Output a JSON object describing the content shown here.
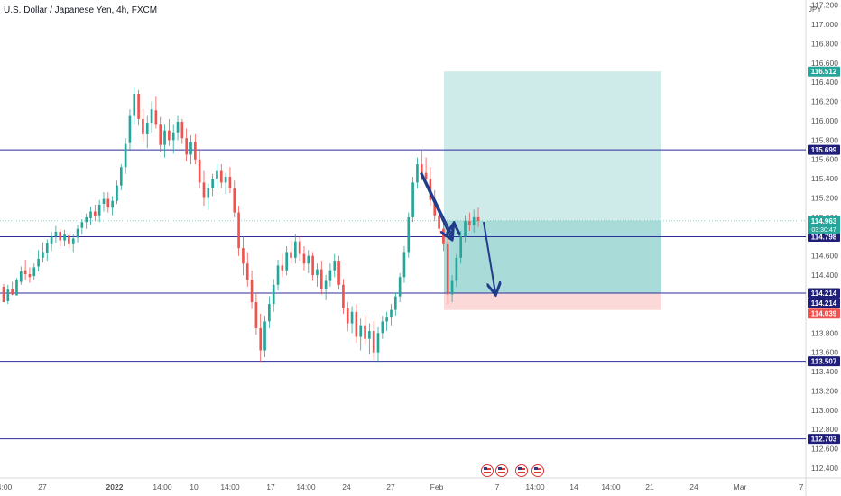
{
  "header": {
    "title": "U.S. Dollar / Japanese Yen, 4h, FXCM",
    "currency_badge": "JPY"
  },
  "colors": {
    "up_candle": "#26a69a",
    "down_candle": "#ef5350",
    "level_line": "#2c2c9a",
    "profit_zone": "rgba(38,166,154,0.22)",
    "loss_zone": "rgba(239,83,80,0.22)",
    "arrow": "#1f3b8a"
  },
  "chart_data": {
    "type": "candlestick",
    "symbol": "U.S. Dollar / Japanese Yen",
    "interval": "4h",
    "source": "FXCM",
    "y_range": [
      112.3,
      117.25
    ],
    "y_ticks": [
      "117.200",
      "117.000",
      "116.800",
      "116.600",
      "116.400",
      "116.200",
      "116.000",
      "115.800",
      "115.600",
      "115.400",
      "115.200",
      "115.000",
      "114.800",
      "114.600",
      "114.400",
      "114.200",
      "114.000",
      "113.800",
      "113.600",
      "113.400",
      "113.200",
      "113.000",
      "112.800",
      "112.600",
      "112.400"
    ],
    "x_ticks": [
      "4:00",
      "27",
      "2022",
      "14:00",
      "10",
      "14:00",
      "17",
      "14:00",
      "24",
      "27",
      "Feb",
      "7",
      "14:00",
      "14",
      "14:00",
      "21",
      "24",
      "Mar",
      "7"
    ],
    "horizontal_levels": [
      {
        "label": "115.699",
        "value": 115.699
      },
      {
        "label": "114.798",
        "value": 114.798
      },
      {
        "label": "114.214",
        "value": 114.214
      },
      {
        "label": "113.507",
        "value": 113.507
      },
      {
        "label": "112.703",
        "value": 112.703
      }
    ],
    "price_badges": [
      {
        "label": "116.512",
        "value": 116.512,
        "kind": "target"
      },
      {
        "label": "114.963",
        "sublabel": "03:30:47",
        "value": 114.963,
        "kind": "current"
      },
      {
        "label": "114.214",
        "value": 114.214,
        "kind": "entry"
      },
      {
        "label": "114.039",
        "value": 114.039,
        "kind": "stop"
      }
    ],
    "position_tool": {
      "entry": 114.214,
      "target": 116.512,
      "stop": 114.039,
      "current": 114.963
    },
    "candles": [
      [
        114.28,
        114.31,
        114.12,
        114.12
      ],
      [
        114.13,
        114.3,
        114.1,
        114.25
      ],
      [
        114.26,
        114.33,
        114.19,
        114.2
      ],
      [
        114.19,
        114.37,
        114.19,
        114.35
      ],
      [
        114.33,
        114.49,
        114.3,
        114.44
      ],
      [
        114.45,
        114.56,
        114.35,
        114.41
      ],
      [
        114.41,
        114.48,
        114.32,
        114.38
      ],
      [
        114.39,
        114.52,
        114.35,
        114.48
      ],
      [
        114.49,
        114.66,
        114.44,
        114.57
      ],
      [
        114.58,
        114.74,
        114.53,
        114.64
      ],
      [
        114.63,
        114.77,
        114.55,
        114.73
      ],
      [
        114.72,
        114.85,
        114.65,
        114.8
      ],
      [
        114.8,
        114.91,
        114.73,
        114.85
      ],
      [
        114.85,
        114.88,
        114.7,
        114.76
      ],
      [
        114.76,
        114.87,
        114.7,
        114.82
      ],
      [
        114.81,
        114.84,
        114.68,
        114.72
      ],
      [
        114.72,
        114.83,
        114.64,
        114.78
      ],
      [
        114.79,
        114.92,
        114.74,
        114.88
      ],
      [
        114.89,
        114.98,
        114.82,
        114.95
      ],
      [
        114.95,
        115.04,
        114.88,
        115.0
      ],
      [
        114.99,
        115.11,
        114.92,
        115.06
      ],
      [
        115.06,
        115.13,
        114.96,
        115.01
      ],
      [
        115.02,
        115.18,
        114.95,
        115.13
      ],
      [
        115.14,
        115.26,
        115.06,
        115.19
      ],
      [
        115.19,
        115.26,
        115.05,
        115.1
      ],
      [
        115.1,
        115.22,
        115.02,
        115.17
      ],
      [
        115.17,
        115.38,
        115.14,
        115.33
      ],
      [
        115.33,
        115.55,
        115.28,
        115.52
      ],
      [
        115.52,
        115.82,
        115.45,
        115.76
      ],
      [
        115.77,
        116.12,
        115.7,
        116.05
      ],
      [
        116.05,
        116.35,
        115.96,
        116.28
      ],
      [
        116.28,
        116.32,
        115.95,
        116.02
      ],
      [
        116.02,
        116.12,
        115.78,
        115.86
      ],
      [
        115.86,
        116.05,
        115.72,
        115.98
      ],
      [
        115.98,
        116.2,
        115.88,
        116.12
      ],
      [
        116.11,
        116.25,
        115.92,
        115.96
      ],
      [
        115.96,
        116.04,
        115.68,
        115.75
      ],
      [
        115.75,
        115.96,
        115.62,
        115.9
      ],
      [
        115.9,
        116.02,
        115.74,
        115.8
      ],
      [
        115.8,
        115.96,
        115.66,
        115.88
      ],
      [
        115.88,
        116.05,
        115.8,
        115.99
      ],
      [
        115.99,
        116.02,
        115.76,
        115.82
      ],
      [
        115.82,
        115.92,
        115.58,
        115.65
      ],
      [
        115.65,
        115.85,
        115.55,
        115.78
      ],
      [
        115.78,
        115.86,
        115.55,
        115.6
      ],
      [
        115.6,
        115.7,
        115.3,
        115.36
      ],
      [
        115.36,
        115.48,
        115.12,
        115.2
      ],
      [
        115.2,
        115.35,
        115.08,
        115.3
      ],
      [
        115.3,
        115.45,
        115.22,
        115.4
      ],
      [
        115.4,
        115.55,
        115.31,
        115.48
      ],
      [
        115.48,
        115.55,
        115.3,
        115.36
      ],
      [
        115.36,
        115.46,
        115.24,
        115.42
      ],
      [
        115.42,
        115.52,
        115.25,
        115.3
      ],
      [
        115.3,
        115.38,
        115.0,
        115.05
      ],
      [
        115.05,
        115.12,
        114.6,
        114.68
      ],
      [
        114.68,
        114.8,
        114.4,
        114.52
      ],
      [
        114.52,
        114.64,
        114.28,
        114.35
      ],
      [
        114.35,
        114.45,
        114.05,
        114.12
      ],
      [
        114.12,
        114.22,
        113.78,
        113.85
      ],
      [
        113.85,
        114.0,
        113.5,
        113.62
      ],
      [
        113.62,
        113.98,
        113.55,
        113.92
      ],
      [
        113.92,
        114.18,
        113.85,
        114.1
      ],
      [
        114.1,
        114.36,
        114.02,
        114.3
      ],
      [
        114.3,
        114.56,
        114.24,
        114.5
      ],
      [
        114.5,
        114.62,
        114.38,
        114.45
      ],
      [
        114.45,
        114.7,
        114.4,
        114.64
      ],
      [
        114.64,
        114.76,
        114.52,
        114.58
      ],
      [
        114.58,
        114.82,
        114.52,
        114.75
      ],
      [
        114.75,
        114.8,
        114.55,
        114.62
      ],
      [
        114.62,
        114.7,
        114.45,
        114.52
      ],
      [
        114.52,
        114.66,
        114.42,
        114.6
      ],
      [
        114.6,
        114.64,
        114.34,
        114.4
      ],
      [
        114.4,
        114.52,
        114.28,
        114.46
      ],
      [
        114.46,
        114.55,
        114.2,
        114.26
      ],
      [
        114.26,
        114.4,
        114.14,
        114.34
      ],
      [
        114.34,
        114.52,
        114.28,
        114.45
      ],
      [
        114.45,
        114.62,
        114.38,
        114.55
      ],
      [
        114.55,
        114.6,
        114.25,
        114.3
      ],
      [
        114.3,
        114.36,
        114.0,
        114.06
      ],
      [
        114.06,
        114.12,
        113.82,
        113.9
      ],
      [
        113.9,
        114.08,
        113.8,
        114.02
      ],
      [
        114.02,
        114.1,
        113.7,
        113.76
      ],
      [
        113.76,
        113.95,
        113.62,
        113.88
      ],
      [
        113.88,
        113.98,
        113.68,
        113.74
      ],
      [
        113.74,
        113.9,
        113.58,
        113.82
      ],
      [
        113.82,
        113.92,
        113.52,
        113.6
      ],
      [
        113.6,
        113.86,
        113.5,
        113.8
      ],
      [
        113.8,
        113.98,
        113.74,
        113.92
      ],
      [
        113.92,
        114.02,
        113.82,
        113.96
      ],
      [
        113.96,
        114.1,
        113.88,
        114.04
      ],
      [
        114.04,
        114.22,
        113.98,
        114.18
      ],
      [
        114.18,
        114.42,
        114.12,
        114.38
      ],
      [
        114.38,
        114.7,
        114.32,
        114.64
      ],
      [
        114.64,
        115.05,
        114.58,
        115.0
      ],
      [
        115.0,
        115.42,
        114.95,
        115.36
      ],
      [
        115.36,
        115.62,
        115.3,
        115.55
      ],
      [
        115.55,
        115.7,
        115.38,
        115.46
      ],
      [
        115.46,
        115.62,
        115.32,
        115.4
      ],
      [
        115.4,
        115.52,
        115.12,
        115.18
      ],
      [
        115.18,
        115.28,
        114.96,
        115.02
      ],
      [
        115.02,
        115.1,
        114.82,
        114.88
      ],
      [
        114.88,
        114.96,
        114.65,
        114.72
      ],
      [
        114.72,
        114.8,
        114.1,
        114.2
      ],
      [
        114.2,
        114.4,
        114.12,
        114.34
      ],
      [
        114.34,
        114.62,
        114.28,
        114.58
      ],
      [
        114.58,
        114.86,
        114.52,
        114.8
      ],
      [
        114.8,
        115.02,
        114.74,
        114.96
      ],
      [
        114.96,
        115.05,
        114.86,
        114.92
      ],
      [
        114.92,
        115.08,
        114.84,
        115.0
      ],
      [
        115.0,
        115.1,
        114.9,
        114.963
      ]
    ],
    "annotations": [
      {
        "type": "arrow",
        "from": [
          114.214,
          115.45
        ],
        "to": [
          114.214,
          114.76
        ],
        "description": "down arrow segment"
      },
      {
        "type": "arrow",
        "description": "up then down projected path"
      }
    ],
    "event_icons": [
      "flag-us",
      "flag-us",
      "flag-us",
      "flag-us"
    ]
  }
}
